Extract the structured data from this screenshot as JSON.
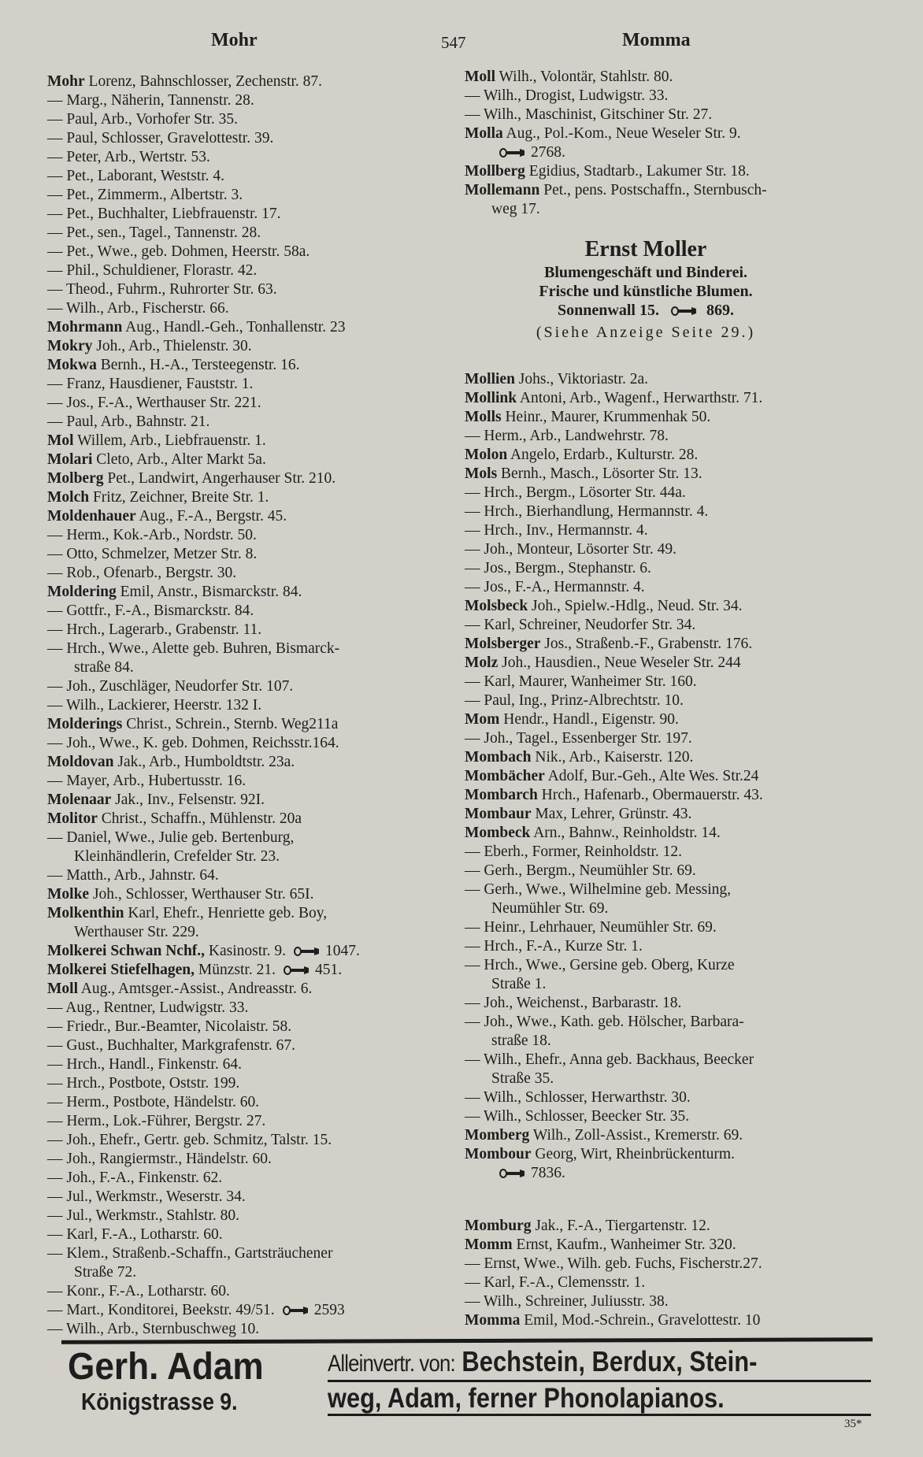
{
  "header": {
    "left": "Mohr",
    "page": "547",
    "right": "Momma"
  },
  "left_column": [
    {
      "b": "Mohr",
      "t": " Lorenz, Bahnschlosser, Zechenstr. 87."
    },
    {
      "b": "",
      "t": "— Marg., Näherin, Tannenstr. 28."
    },
    {
      "b": "",
      "t": "— Paul, Arb., Vorhofer Str. 35."
    },
    {
      "b": "",
      "t": "— Paul, Schlosser, Gravelottestr. 39."
    },
    {
      "b": "",
      "t": "— Peter, Arb., Wertstr. 53."
    },
    {
      "b": "",
      "t": "— Pet., Laborant, Weststr. 4."
    },
    {
      "b": "",
      "t": "— Pet., Zimmerm., Albertstr. 3."
    },
    {
      "b": "",
      "t": "— Pet., Buchhalter, Liebfrauenstr. 17."
    },
    {
      "b": "",
      "t": "— Pet., sen., Tagel., Tannenstr. 28."
    },
    {
      "b": "",
      "t": "— Pet., Wwe., geb. Dohmen, Heerstr. 58a."
    },
    {
      "b": "",
      "t": "— Phil., Schuldiener, Florastr. 42."
    },
    {
      "b": "",
      "t": "— Theod., Fuhrm., Ruhrorter Str. 63."
    },
    {
      "b": "",
      "t": "— Wilh., Arb., Fischerstr. 66."
    },
    {
      "b": "Mohrmann",
      "t": " Aug., Handl.-Geh., Tonhallenstr. 23"
    },
    {
      "b": "Mokry",
      "t": " Joh., Arb., Thielenstr. 30."
    },
    {
      "b": "Mokwa",
      "t": " Bernh., H.-A., Tersteegenstr. 16."
    },
    {
      "b": "",
      "t": "— Franz, Hausdiener, Fauststr. 1."
    },
    {
      "b": "",
      "t": "— Jos., F.-A., Werthauser Str. 221."
    },
    {
      "b": "",
      "t": "— Paul, Arb., Bahnstr. 21."
    },
    {
      "b": "Mol",
      "t": " Willem, Arb., Liebfrauenstr. 1."
    },
    {
      "b": "Molari",
      "t": " Cleto, Arb., Alter Markt 5a."
    },
    {
      "b": "Molberg",
      "t": " Pet., Landwirt, Angerhauser Str. 210."
    },
    {
      "b": "Molch",
      "t": " Fritz, Zeichner, Breite Str. 1."
    },
    {
      "b": "Moldenhauer",
      "t": " Aug., F.-A., Bergstr. 45."
    },
    {
      "b": "",
      "t": "— Herm., Kok.-Arb., Nordstr. 50."
    },
    {
      "b": "",
      "t": "— Otto, Schmelzer, Metzer Str. 8."
    },
    {
      "b": "",
      "t": "— Rob., Ofenarb., Bergstr. 30."
    },
    {
      "b": "Moldering",
      "t": " Emil, Anstr., Bismarckstr. 84."
    },
    {
      "b": "",
      "t": "— Gottfr., F.-A., Bismarckstr. 84."
    },
    {
      "b": "",
      "t": "— Hrch., Lagerarb., Grabenstr. 11."
    },
    {
      "b": "",
      "t": "— Hrch., Wwe., Alette geb. Buhren, Bismarck-"
    },
    {
      "b": "",
      "t": "straße 84.",
      "c": true
    },
    {
      "b": "",
      "t": "— Joh., Zuschläger, Neudorfer Str. 107."
    },
    {
      "b": "",
      "t": "— Wilh., Lackierer, Heerstr. 132 I."
    },
    {
      "b": "Molderings",
      "t": " Christ., Schrein., Sternb. Weg211a"
    },
    {
      "b": "",
      "t": "— Joh., Wwe., K. geb. Dohmen, Reichsstr.164."
    },
    {
      "b": "Moldovan",
      "t": " Jak., Arb., Humboldtstr. 23a."
    },
    {
      "b": "",
      "t": "— Mayer, Arb., Hubertusstr. 16."
    },
    {
      "b": "Molenaar",
      "t": " Jak., Inv., Felsenstr. 92I."
    },
    {
      "b": "Molitor",
      "t": " Christ., Schaffn., Mühlenstr. 20a"
    },
    {
      "b": "",
      "t": "— Daniel, Wwe., Julie geb. Bertenburg,"
    },
    {
      "b": "",
      "t": "Kleinhändlerin, Crefelder Str. 23.",
      "c": true
    },
    {
      "b": "",
      "t": "— Matth., Arb., Jahnstr. 64."
    },
    {
      "b": "Molke",
      "t": " Joh., Schlosser, Werthauser Str. 65I."
    },
    {
      "b": "Molkenthin",
      "t": " Karl, Ehefr., Henriette geb. Boy,"
    },
    {
      "b": "",
      "t": "Werthauser Str. 229.",
      "c": true
    },
    {
      "b": "Molkerei Schwan Nchf.,",
      "t": " Kasinostr. 9.",
      "phone": "1047."
    },
    {
      "b": "Molkerei Stiefelhagen,",
      "t": " Münzstr. 21.",
      "phone": "451."
    },
    {
      "b": "Moll",
      "t": " Aug., Amtsger.-Assist., Andreasstr. 6."
    },
    {
      "b": "",
      "t": "— Aug., Rentner, Ludwigstr. 33."
    },
    {
      "b": "",
      "t": "— Friedr., Bur.-Beamter, Nicolaistr. 58."
    },
    {
      "b": "",
      "t": "— Gust., Buchhalter, Markgrafenstr. 67."
    },
    {
      "b": "",
      "t": "— Hrch., Handl., Finkenstr. 64."
    },
    {
      "b": "",
      "t": "— Hrch., Postbote, Oststr. 199."
    },
    {
      "b": "",
      "t": "— Herm., Postbote, Händelstr. 60."
    },
    {
      "b": "",
      "t": "— Herm., Lok.-Führer, Bergstr. 27."
    },
    {
      "b": "",
      "t": "— Joh., Ehefr., Gertr. geb. Schmitz, Talstr. 15."
    },
    {
      "b": "",
      "t": "— Joh., Rangiermstr., Händelstr. 60."
    },
    {
      "b": "",
      "t": "— Joh., F.-A., Finkenstr. 62."
    },
    {
      "b": "",
      "t": "— Jul., Werkmstr., Weserstr. 34."
    },
    {
      "b": "",
      "t": "— Jul., Werkmstr., Stahlstr. 80."
    },
    {
      "b": "",
      "t": "— Karl, F.-A., Lotharstr. 60."
    },
    {
      "b": "",
      "t": "— Klem., Straßenb.-Schaffn., Gartsträuchener"
    },
    {
      "b": "",
      "t": "Straße 72.",
      "c": true
    },
    {
      "b": "",
      "t": "— Konr., F.-A., Lotharstr. 60."
    },
    {
      "b": "",
      "t": "— Mart., Konditorei, Beekstr. 49/51.",
      "phone": "2593"
    },
    {
      "b": "",
      "t": "— Wilh., Arb., Sternbuschweg 10."
    }
  ],
  "right_column_a": [
    {
      "b": "Moll",
      "t": " Wilh., Volontär, Stahlstr. 80."
    },
    {
      "b": "",
      "t": "— Wilh., Drogist, Ludwigstr. 33."
    },
    {
      "b": "",
      "t": "— Wilh., Maschinist, Gitschiner Str. 27."
    },
    {
      "b": "Molla",
      "t": " Aug., Pol.-Kom., Neue Weseler Str. 9."
    },
    {
      "b": "",
      "t": "",
      "phone": "2768.",
      "c": true
    },
    {
      "b": "Mollberg",
      "t": " Egidius, Stadtarb., Lakumer Str. 18."
    },
    {
      "b": "Mollemann",
      "t": " Pet., pens. Postschaffn., Sternbusch-"
    },
    {
      "b": "",
      "t": "weg 17.",
      "c": true
    }
  ],
  "advert_moller": {
    "name": "Ernst Moller",
    "line1": "Blumengeschäft und Binderei.",
    "line2": "Frische und künstliche Blumen.",
    "address": "Sonnenwall 15.",
    "phone": "869.",
    "note": "(Siehe Anzeige Seite 29.)"
  },
  "right_column_b": [
    {
      "b": "Mollien",
      "t": " Johs., Viktoriastr. 2a."
    },
    {
      "b": "Mollink",
      "t": " Antoni, Arb., Wagenf., Herwarthstr. 71."
    },
    {
      "b": "Molls",
      "t": " Heinr., Maurer, Krummenhak 50."
    },
    {
      "b": "",
      "t": "— Herm., Arb., Landwehrstr. 78."
    },
    {
      "b": "Molon",
      "t": " Angelo, Erdarb., Kulturstr. 28."
    },
    {
      "b": "Mols",
      "t": " Bernh., Masch., Lösorter Str. 13."
    },
    {
      "b": "",
      "t": "— Hrch., Bergm., Lösorter Str. 44a."
    },
    {
      "b": "",
      "t": "— Hrch., Bierhandlung, Hermannstr. 4."
    },
    {
      "b": "",
      "t": "— Hrch., Inv., Hermannstr. 4."
    },
    {
      "b": "",
      "t": "— Joh., Monteur, Lösorter Str. 49."
    },
    {
      "b": "",
      "t": "— Jos., Bergm., Stephanstr. 6."
    },
    {
      "b": "",
      "t": "— Jos., F.-A., Hermannstr. 4."
    },
    {
      "b": "Molsbeck",
      "t": " Joh., Spielw.-Hdlg., Neud. Str. 34."
    },
    {
      "b": "",
      "t": "— Karl, Schreiner, Neudorfer Str. 34."
    },
    {
      "b": "Molsberger",
      "t": " Jos., Straßenb.-F., Grabenstr. 176."
    },
    {
      "b": "Molz",
      "t": " Joh., Hausdien., Neue Weseler Str. 244"
    },
    {
      "b": "",
      "t": "— Karl, Maurer, Wanheimer Str. 160."
    },
    {
      "b": "",
      "t": "— Paul, Ing., Prinz-Albrechtstr. 10."
    },
    {
      "b": "Mom",
      "t": " Hendr., Handl., Eigenstr. 90."
    },
    {
      "b": "",
      "t": "— Joh., Tagel., Essenberger Str. 197."
    },
    {
      "b": "Mombach",
      "t": " Nik., Arb., Kaiserstr. 120."
    },
    {
      "b": "Mombächer",
      "t": " Adolf, Bur.-Geh., Alte Wes. Str.24"
    },
    {
      "b": "Mombarch",
      "t": " Hrch., Hafenarb., Obermauerstr. 43."
    },
    {
      "b": "Mombaur",
      "t": " Max, Lehrer, Grünstr. 43."
    },
    {
      "b": "Mombeck",
      "t": " Arn., Bahnw., Reinholdstr. 14."
    },
    {
      "b": "",
      "t": "— Eberh., Former, Reinholdstr. 12."
    },
    {
      "b": "",
      "t": "— Gerh., Bergm., Neumühler Str. 69."
    },
    {
      "b": "",
      "t": "— Gerh., Wwe., Wilhelmine geb. Messing,"
    },
    {
      "b": "",
      "t": "Neumühler Str. 69.",
      "c": true
    },
    {
      "b": "",
      "t": "— Heinr., Lehrhauer, Neumühler Str. 69."
    },
    {
      "b": "",
      "t": "— Hrch., F.-A., Kurze Str. 1."
    },
    {
      "b": "",
      "t": "— Hrch., Wwe., Gersine geb. Oberg, Kurze"
    },
    {
      "b": "",
      "t": "Straße 1.",
      "c": true
    },
    {
      "b": "",
      "t": "— Joh., Weichenst., Barbarastr. 18."
    },
    {
      "b": "",
      "t": "— Joh., Wwe., Kath. geb. Hölscher, Barbara-"
    },
    {
      "b": "",
      "t": "straße 18.",
      "c": true
    },
    {
      "b": "",
      "t": "— Wilh., Ehefr., Anna geb. Backhaus, Beecker"
    },
    {
      "b": "",
      "t": "Straße 35.",
      "c": true
    },
    {
      "b": "",
      "t": "— Wilh., Schlosser, Herwarthstr. 30."
    },
    {
      "b": "",
      "t": "— Wilh., Schlosser, Beecker Str. 35."
    },
    {
      "b": "Momberg",
      "t": " Wilh., Zoll-Assist., Kremerstr. 69."
    },
    {
      "b": "Mombour",
      "t": " Georg, Wirt, Rheinbrückenturm."
    },
    {
      "b": "",
      "t": "",
      "phone": "7836.",
      "c": true
    }
  ],
  "right_column_c": [
    {
      "b": "Momburg",
      "t": " Jak., F.-A., Tiergartenstr. 12."
    },
    {
      "b": "Momm",
      "t": " Ernst, Kaufm., Wanheimer Str. 320."
    },
    {
      "b": "",
      "t": "— Ernst, Wwe., Wilh. geb. Fuchs, Fischerstr.27."
    },
    {
      "b": "",
      "t": "— Karl, F.-A., Clemensstr. 1."
    },
    {
      "b": "",
      "t": "— Wilh., Schreiner, Juliusstr. 38."
    },
    {
      "b": "Momma",
      "t": " Emil, Mod.-Schrein., Gravelottestr. 10"
    }
  ],
  "advert_adam": {
    "name": "Gerh. Adam",
    "address": "Königstrasse 9.",
    "line1_prefix": "Alleinvertr. von:",
    "line1": "Bechstein, Berdux, Stein-",
    "line2": "weg, Adam, ferner Phonolapianos."
  },
  "footer": {
    "signature": "35*"
  },
  "icons": {
    "phone": "telephone-handset-icon"
  }
}
